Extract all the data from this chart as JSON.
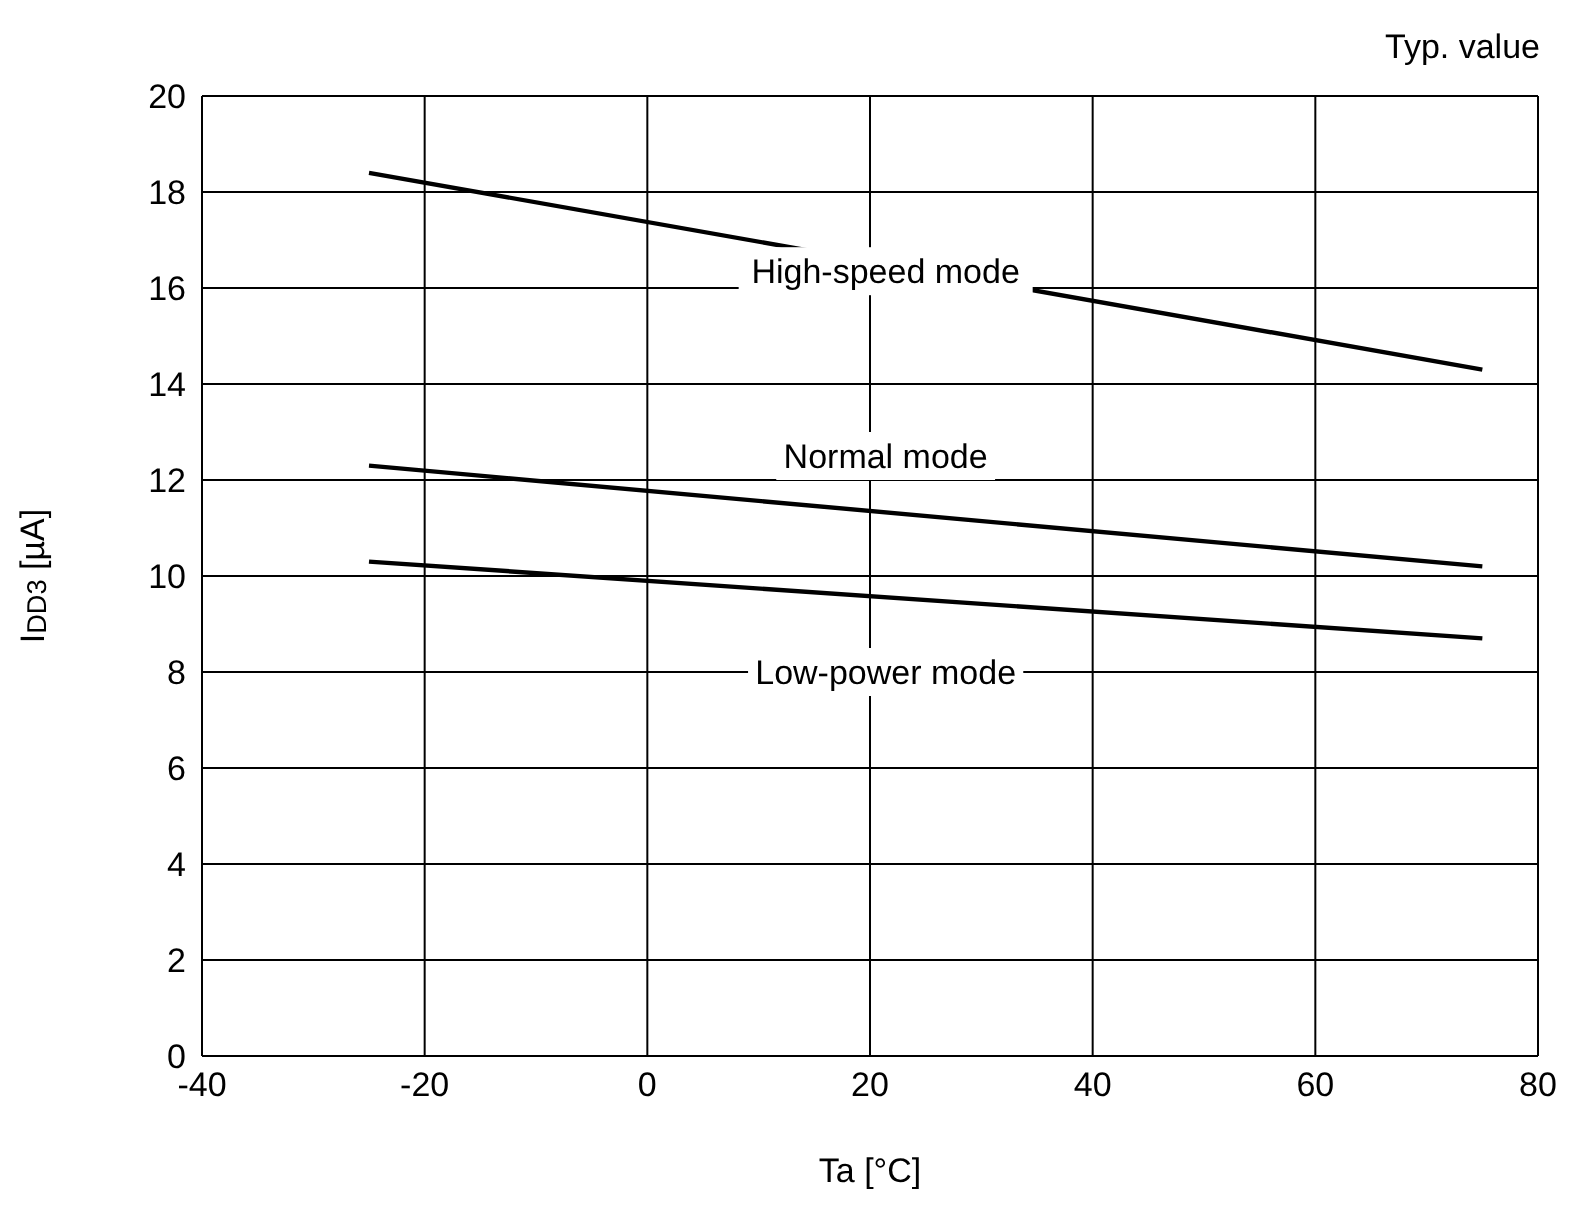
{
  "chart_data": {
    "type": "line",
    "subtitle": "Typ. value",
    "xlabel": "Ta [°C]",
    "ylabel": "I$_{DD3}$ [µA]",
    "xlim": [
      -40,
      80
    ],
    "xticks": [
      -40,
      -20,
      0,
      20,
      40,
      60,
      80
    ],
    "ylim": [
      0,
      20
    ],
    "yticks": [
      0,
      2,
      4,
      6,
      8,
      10,
      12,
      14,
      16,
      18,
      20
    ],
    "grid": true,
    "legend": false,
    "marker": "none",
    "line_style": "solid",
    "x": [
      -25,
      75
    ],
    "series": [
      {
        "name": "High-speed mode",
        "color": "#000000",
        "values": [
          18.4,
          14.3
        ]
      },
      {
        "name": "Normal mode",
        "color": "#000000",
        "values": [
          12.3,
          10.2
        ]
      },
      {
        "name": "Low-power mode",
        "color": "#000000",
        "values": [
          10.3,
          8.7
        ]
      }
    ]
  }
}
